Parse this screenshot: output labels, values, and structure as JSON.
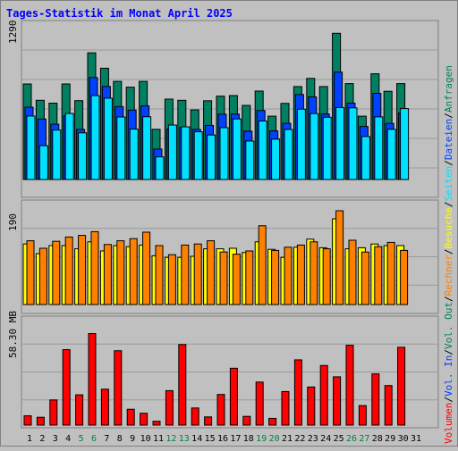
{
  "title": "Tages-Statistik im Monat April 2025",
  "colors": {
    "anfragen": "#008060",
    "dateien": "#0040ff",
    "seiten": "#00e0ff",
    "besuche": "#ffff00",
    "rechner": "#ff8000",
    "volumen": "#ff0000",
    "title": "#0000ff",
    "weekend": "#008040",
    "text": "#000000"
  },
  "side_legend": {
    "volumen": "Volumen",
    "vol_in": "Vol. In",
    "vol_out": "Vol. Out",
    "rechner": "Rechner",
    "besuche": "Besuche",
    "seiten": "Seiten",
    "dateien": "Dateien",
    "anfragen": "Anfragen",
    "sep": "/"
  },
  "chart_data": [
    {
      "type": "bar",
      "panel": "top",
      "max_label": "1290",
      "ylim": [
        0,
        1290
      ],
      "categories": [
        "1",
        "2",
        "3",
        "4",
        "5",
        "6",
        "7",
        "8",
        "9",
        "10",
        "11",
        "12",
        "13",
        "14",
        "15",
        "16",
        "17",
        "18",
        "19",
        "20",
        "21",
        "22",
        "23",
        "24",
        "25",
        "26",
        "27",
        "28",
        "29",
        "30"
      ],
      "series": [
        {
          "name": "Anfragen",
          "values": [
            807,
            669,
            645,
            807,
            666,
            1070,
            940,
            829,
            780,
            829,
            424,
            679,
            669,
            588,
            665,
            704,
            709,
            626,
            747,
            535,
            643,
            785,
            854,
            785,
            1235,
            810,
            535,
            893,
            745,
            810
          ]
        },
        {
          "name": "Dateien",
          "values": [
            611,
            511,
            467,
            538,
            423,
            861,
            786,
            616,
            586,
            622,
            257,
            426,
            440,
            423,
            457,
            552,
            553,
            408,
            583,
            411,
            475,
            718,
            698,
            553,
            907,
            645,
            448,
            728,
            474,
            562
          ]
        },
        {
          "name": "Seiten",
          "values": [
            536,
            286,
            418,
            558,
            394,
            709,
            687,
            528,
            426,
            530,
            191,
            460,
            445,
            403,
            376,
            438,
            512,
            325,
            494,
            341,
            423,
            594,
            557,
            526,
            608,
            605,
            363,
            529,
            424,
            599
          ]
        }
      ]
    },
    {
      "type": "bar",
      "panel": "middle",
      "max_label": "190",
      "ylim": [
        0,
        190
      ],
      "categories": [
        "1",
        "2",
        "3",
        "4",
        "5",
        "6",
        "7",
        "8",
        "9",
        "10",
        "11",
        "12",
        "13",
        "14",
        "15",
        "16",
        "17",
        "18",
        "19",
        "20",
        "21",
        "22",
        "23",
        "24",
        "25",
        "26",
        "27",
        "28",
        "29",
        "30"
      ],
      "series": [
        {
          "name": "Besuche",
          "values": [
            113,
            95,
            110,
            110,
            104,
            117,
            100,
            110,
            108,
            111,
            91,
            88,
            88,
            90,
            104,
            104,
            105,
            97,
            117,
            103,
            88,
            107,
            122,
            106,
            160,
            104,
            106,
            113,
            110,
            110
          ]
        },
        {
          "name": "Rechner",
          "values": [
            119,
            105,
            118,
            126,
            129,
            136,
            112,
            119,
            123,
            135,
            110,
            93,
            111,
            113,
            119,
            98,
            94,
            100,
            147,
            101,
            107,
            111,
            117,
            104,
            175,
            120,
            98,
            108,
            116,
            101
          ]
        }
      ]
    },
    {
      "type": "bar",
      "panel": "bottom",
      "max_label": "58.30 MB",
      "ylim": [
        0,
        58.3
      ],
      "categories": [
        "1",
        "2",
        "3",
        "4",
        "5",
        "6",
        "7",
        "8",
        "9",
        "10",
        "11",
        "12",
        "13",
        "14",
        "15",
        "16",
        "17",
        "18",
        "19",
        "20",
        "21",
        "22",
        "23",
        "24",
        "25",
        "26",
        "27",
        "28",
        "29",
        "30"
      ],
      "series": [
        {
          "name": "Volumen",
          "values": [
            5.1,
            4.3,
            13.8,
            41.4,
            16.6,
            50.2,
            19.7,
            40.8,
            8.7,
            6.5,
            2.1,
            18.9,
            44.2,
            9.4,
            4.5,
            16.8,
            31.2,
            4.8,
            23.6,
            3.7,
            18.4,
            35.8,
            20.9,
            32.7,
            26.5,
            43.8,
            10.7,
            28.1,
            21.7,
            42.7
          ]
        }
      ]
    }
  ],
  "x_labels": [
    "1",
    "2",
    "3",
    "4",
    "5",
    "6",
    "7",
    "8",
    "9",
    "10",
    "11",
    "12",
    "13",
    "14",
    "15",
    "16",
    "17",
    "18",
    "19",
    "20",
    "21",
    "22",
    "23",
    "24",
    "25",
    "26",
    "27",
    "28",
    "29",
    "30",
    "31"
  ],
  "weekend_days": [
    "5",
    "6",
    "12",
    "13",
    "19",
    "20",
    "26",
    "27"
  ]
}
